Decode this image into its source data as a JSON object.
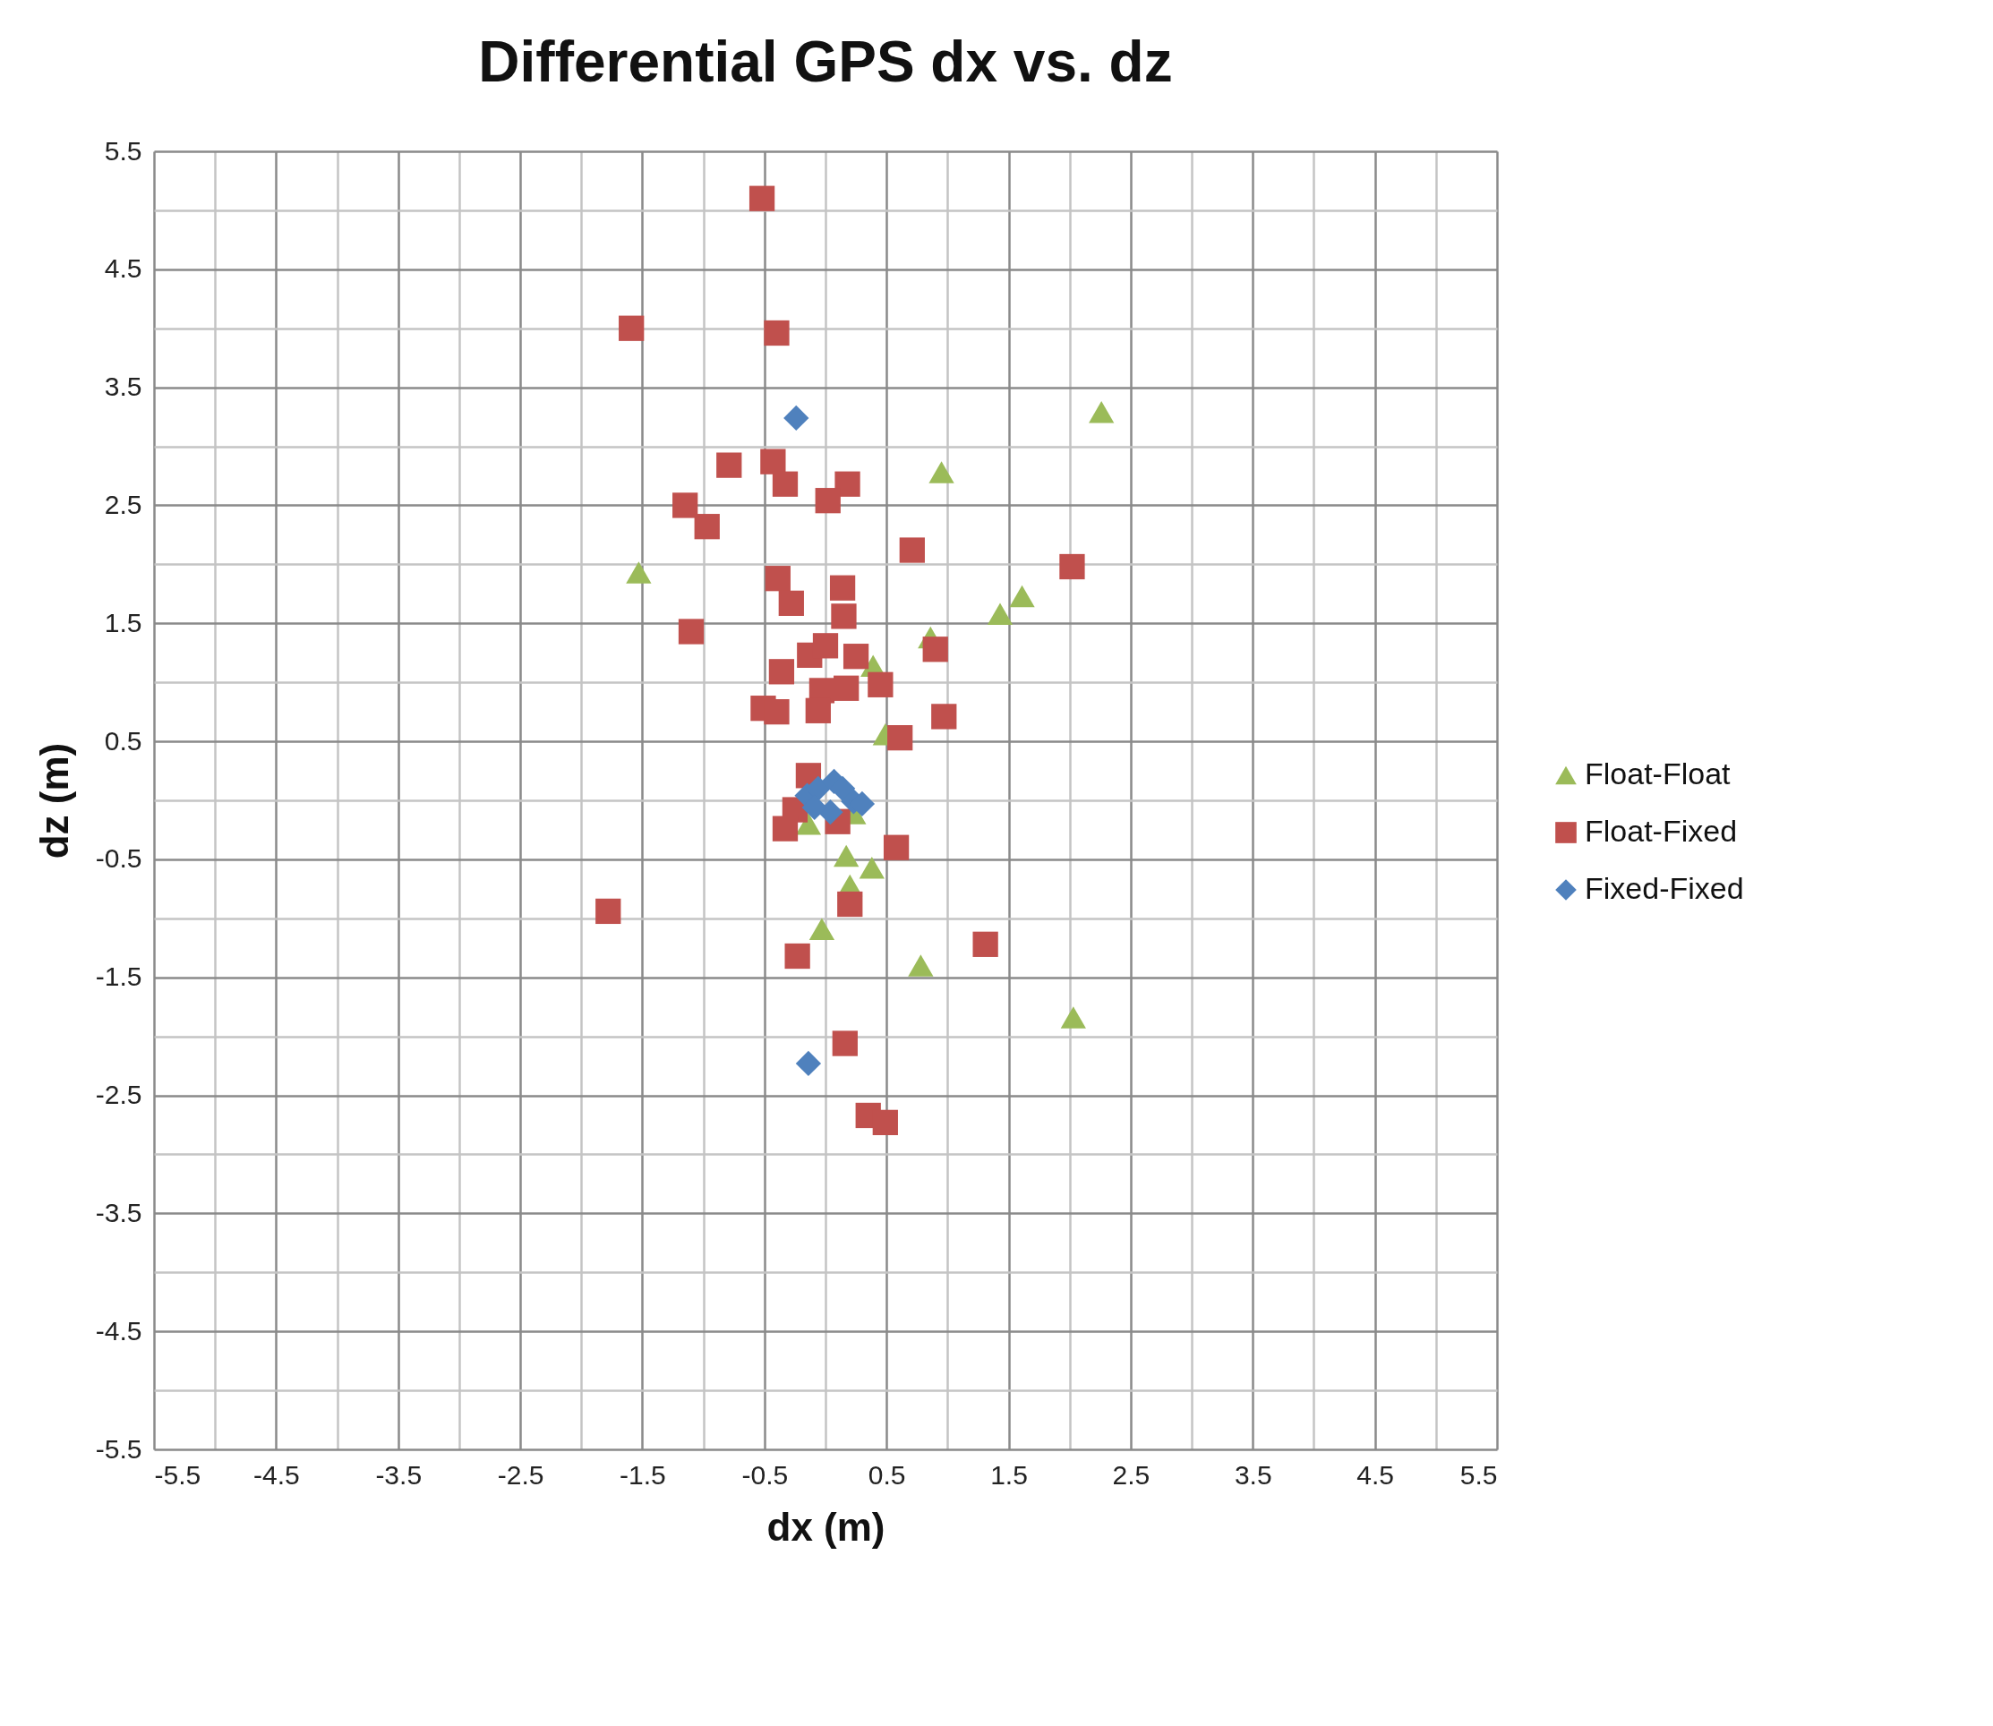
{
  "chart_data": {
    "type": "scatter",
    "title": "Differential GPS dx vs. dz",
    "xlabel": "dx (m)",
    "ylabel": "dz (m)",
    "xlim": [
      -5.5,
      5.5
    ],
    "ylim": [
      -5.5,
      5.5
    ],
    "xticks": [
      -5.5,
      {
        "value": -5,
        "label": null
      },
      -4.5,
      {
        "value": -4,
        "label": null
      },
      -3.5,
      {
        "value": -3,
        "label": null
      },
      -2.5,
      {
        "value": -2,
        "label": null
      },
      -1.5,
      {
        "value": -1,
        "label": null
      },
      -0.5,
      {
        "value": 0,
        "label": null
      },
      0.5,
      {
        "value": 1,
        "label": null
      },
      1.5,
      {
        "value": 2,
        "label": null
      },
      2.5,
      {
        "value": 3,
        "label": null
      },
      3.5,
      {
        "value": 4,
        "label": null
      },
      4.5,
      {
        "value": 5,
        "label": null
      },
      5.5
    ],
    "yticks": [
      -5.5,
      {
        "value": -5,
        "label": null
      },
      -4.5,
      {
        "value": -4,
        "label": null
      },
      -3.5,
      {
        "value": -3,
        "label": null
      },
      -2.5,
      {
        "value": -2,
        "label": null
      },
      -1.5,
      {
        "value": -1,
        "label": null
      },
      -0.5,
      {
        "value": 0,
        "label": null
      },
      0.5,
      {
        "value": 1,
        "label": null
      },
      1.5,
      {
        "value": 2,
        "label": null
      },
      2.5,
      {
        "value": 3,
        "label": null
      },
      3.5,
      {
        "value": 4,
        "label": null
      },
      4.5,
      {
        "value": 5,
        "label": null
      },
      5.5
    ],
    "grid": true,
    "legend": "right",
    "series": [
      {
        "name": "Float-Float",
        "color": "#9bbb59",
        "marker": "triangle",
        "x": [
          2.26,
          0.95,
          -1.53,
          1.61,
          1.43,
          0.86,
          0.39,
          0.49,
          -0.14,
          0.23,
          0.17,
          0.38,
          0.2,
          -0.03,
          0.78,
          2.03
        ],
        "values": [
          3.29,
          2.78,
          1.93,
          1.73,
          1.58,
          1.38,
          1.14,
          0.56,
          -0.2,
          -0.11,
          -0.47,
          -0.57,
          -0.72,
          -1.09,
          -1.4,
          -1.84
        ]
      },
      {
        "name": "Float-Fixed",
        "color": "#c0504d",
        "marker": "square",
        "x": [
          -0.52,
          -1.59,
          -0.4,
          -0.79,
          -0.43,
          -0.33,
          0.18,
          0.02,
          -1.15,
          -0.97,
          0.71,
          2.02,
          -0.39,
          -0.28,
          0.14,
          0.15,
          -1.1,
          -0.36,
          -0.13,
          0.0,
          0.25,
          0.9,
          -0.03,
          0.17,
          0.45,
          -0.51,
          -0.4,
          -0.06,
          0.97,
          0.61,
          -0.14,
          -0.25,
          -0.33,
          0.1,
          0.58,
          0.2,
          -1.78,
          -0.23,
          1.31,
          0.16,
          0.35,
          0.49
        ],
        "values": [
          5.1,
          4.0,
          3.96,
          2.84,
          2.87,
          2.68,
          2.68,
          2.54,
          2.5,
          2.32,
          2.12,
          1.98,
          1.88,
          1.67,
          1.8,
          1.56,
          1.43,
          1.09,
          1.23,
          1.31,
          1.22,
          1.28,
          0.93,
          0.95,
          0.98,
          0.78,
          0.75,
          0.76,
          0.71,
          0.53,
          0.21,
          -0.08,
          -0.24,
          -0.18,
          -0.4,
          -0.88,
          -0.94,
          -1.32,
          -1.22,
          -2.06,
          -2.67,
          -2.73
        ]
      },
      {
        "name": "Fixed-Fixed",
        "color": "#4f81bd",
        "marker": "diamond",
        "x": [
          -0.24,
          -0.15,
          -0.06,
          0.07,
          0.14,
          0.23,
          0.3,
          0.04,
          -0.09,
          -0.14
        ],
        "values": [
          3.24,
          0.04,
          0.1,
          0.16,
          0.1,
          -0.01,
          -0.03,
          -0.1,
          -0.06,
          -2.23
        ]
      }
    ]
  }
}
